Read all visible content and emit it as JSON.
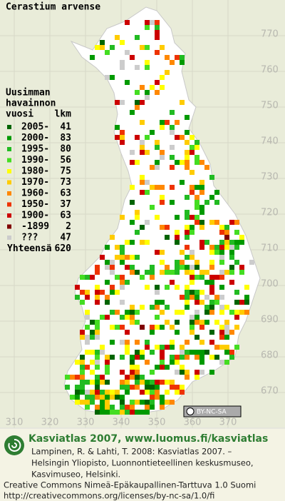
{
  "title": "Cerastium arvense",
  "legend": {
    "header": [
      "Uusimman",
      "havainnon",
      "vuosi"
    ],
    "count_header": "lkm",
    "rows": [
      {
        "label": "2005-",
        "count": 41,
        "color": "#006400"
      },
      {
        "label": "2000-",
        "count": 83,
        "color": "#009a00"
      },
      {
        "label": "1995-",
        "count": 80,
        "color": "#22bb22"
      },
      {
        "label": "1990-",
        "count": 56,
        "color": "#44dd22"
      },
      {
        "label": "1980-",
        "count": 75,
        "color": "#ffff00"
      },
      {
        "label": "1970-",
        "count": 73,
        "color": "#ffcc00"
      },
      {
        "label": "1960-",
        "count": 63,
        "color": "#ff8800"
      },
      {
        "label": "1950-",
        "count": 37,
        "color": "#ee3300"
      },
      {
        "label": "1900-",
        "count": 63,
        "color": "#cc0000"
      },
      {
        "label": "-1899",
        "count": 2,
        "color": "#800000"
      },
      {
        "label": "???",
        "count": 47,
        "color": "#cccccc"
      }
    ],
    "total": {
      "label": "Yhteensä",
      "count": 620
    }
  },
  "map": {
    "y_labels": [
      770,
      760,
      750,
      740,
      730,
      720,
      710,
      700,
      690,
      680,
      670
    ],
    "x_labels": [
      310,
      320,
      330,
      340,
      350,
      360,
      370
    ],
    "license_badge": "BY-NC-SA"
  },
  "footer": {
    "brand": "Kasviatlas 2007, www.luomus.fi/kasviatlas",
    "citation": [
      "Lampinen, R. & Lahti, T. 2008: Kasviatlas 2007. –",
      "Helsingin Yliopisto, Luonnontieteellinen keskusmuseo,",
      "Kasvimuseo, Helsinki."
    ],
    "license": [
      "Creative Commons Nimeä-Epäkaupallinen-Tarttuva 1.0 Suomi",
      "http://creativecommons.org/licenses/by-nc-sa/1.0/fi"
    ]
  }
}
